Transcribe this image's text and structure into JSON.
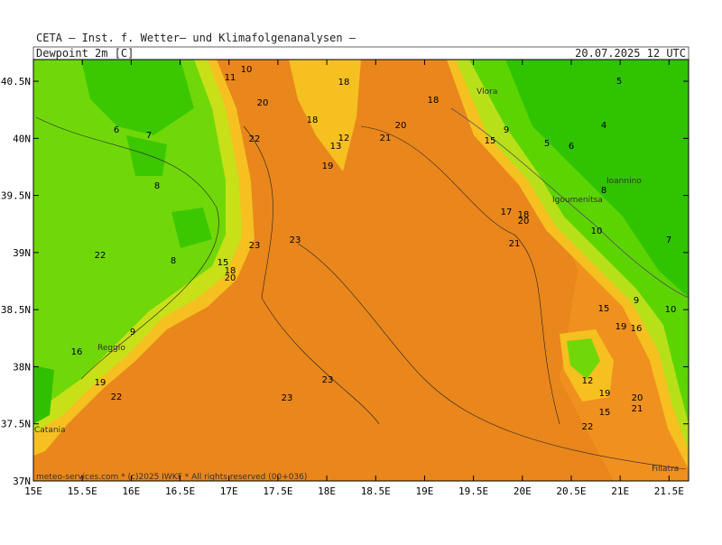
{
  "header": {
    "source": "CETA — Inst. f. Wetter— und Klimafolgenanalysen —",
    "field": "Dewpoint_2m_[C]",
    "valid_time": "20.07.2025 12 UTC"
  },
  "map": {
    "lon_range": [
      15,
      21.7
    ],
    "lat_range": [
      37,
      40.69
    ],
    "lon_ticks": [
      {
        "value": 15,
        "label": "15E"
      },
      {
        "value": 15.5,
        "label": "15.5E"
      },
      {
        "value": 16,
        "label": "16E"
      },
      {
        "value": 16.5,
        "label": "16.5E"
      },
      {
        "value": 17,
        "label": "17E"
      },
      {
        "value": 17.5,
        "label": "17.5E"
      },
      {
        "value": 18,
        "label": "18E"
      },
      {
        "value": 18.5,
        "label": "18.5E"
      },
      {
        "value": 19,
        "label": "19E"
      },
      {
        "value": 19.5,
        "label": "19.5E"
      },
      {
        "value": 20,
        "label": "20E"
      },
      {
        "value": 20.5,
        "label": "20.5E"
      },
      {
        "value": 21,
        "label": "21E"
      },
      {
        "value": 21.5,
        "label": "21.5E"
      }
    ],
    "lat_ticks": [
      {
        "value": 37,
        "label": "37N"
      },
      {
        "value": 37.5,
        "label": "37.5N"
      },
      {
        "value": 38,
        "label": "38N"
      },
      {
        "value": 38.5,
        "label": "38.5N"
      },
      {
        "value": 39,
        "label": "39N"
      },
      {
        "value": 39.5,
        "label": "39.5N"
      },
      {
        "value": 40,
        "label": "40N"
      },
      {
        "value": 40.5,
        "label": "40.5N"
      }
    ],
    "contour_labels": [
      "10",
      "11",
      "18",
      "20",
      "18",
      "6",
      "7",
      "22",
      "12",
      "13",
      "19",
      "20",
      "21",
      "18",
      "8",
      "8",
      "22",
      "23",
      "23",
      "15",
      "18",
      "20",
      "9",
      "16",
      "19",
      "22",
      "23",
      "23",
      "17",
      "18",
      "20",
      "21",
      "5",
      "6",
      "8",
      "10",
      "7",
      "9",
      "10",
      "15",
      "19",
      "16",
      "12",
      "19",
      "15",
      "20",
      "21",
      "22",
      "4",
      "5",
      "9",
      "15"
    ],
    "places": [
      "Vlora",
      "Ioannino",
      "Igoumenitsa",
      "Reggio",
      "Catania",
      "Filiatra"
    ]
  },
  "footer": "meteo-services.com * (c)2025 IWKF * All rights reserved (00+036)"
}
